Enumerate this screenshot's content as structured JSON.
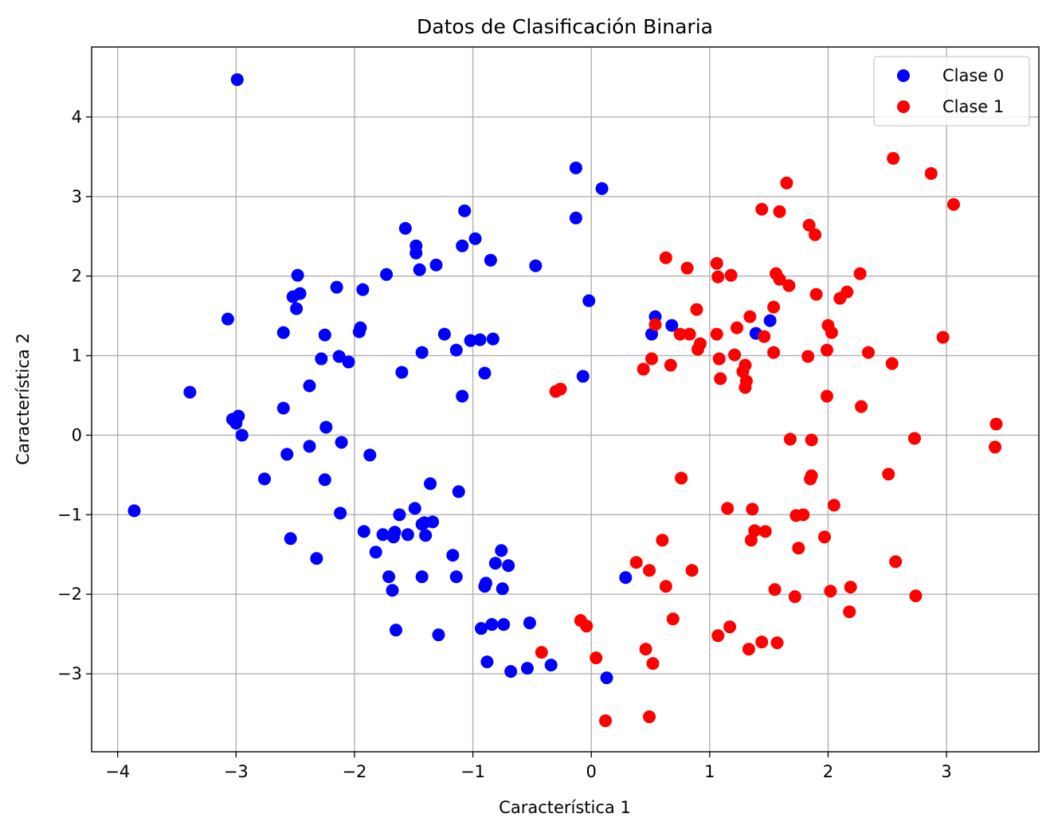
{
  "chart_data": {
    "type": "scatter",
    "title": "Datos de Clasificación Binaria",
    "xlabel": "Característica 1",
    "ylabel": "Característica 2",
    "xlim": [
      -4.22,
      3.78
    ],
    "ylim": [
      -3.98,
      4.88
    ],
    "xticks": [
      -4,
      -3,
      -2,
      -1,
      0,
      1,
      2,
      3
    ],
    "yticks": [
      -3,
      -2,
      -1,
      0,
      1,
      2,
      3,
      4
    ],
    "xtick_labels": [
      "−4",
      "−3",
      "−2",
      "−1",
      "0",
      "1",
      "2",
      "3"
    ],
    "ytick_labels": [
      "−3",
      "−2",
      "−1",
      "0",
      "1",
      "2",
      "3",
      "4"
    ],
    "grid": true,
    "legend_position": "top-right",
    "series": [
      {
        "name": "Clase 0",
        "color": "#0000ff",
        "points": [
          [
            -2.99,
            4.47
          ],
          [
            -3.86,
            -0.95
          ],
          [
            -3.39,
            0.54
          ],
          [
            -3.07,
            1.46
          ],
          [
            -3.03,
            0.2
          ],
          [
            -3.0,
            0.15
          ],
          [
            -2.98,
            0.24
          ],
          [
            -2.95,
            0.0
          ],
          [
            -2.76,
            -0.55
          ],
          [
            -2.6,
            1.29
          ],
          [
            -2.6,
            0.34
          ],
          [
            -2.57,
            -0.24
          ],
          [
            -2.54,
            -1.3
          ],
          [
            -2.52,
            1.74
          ],
          [
            -2.49,
            1.59
          ],
          [
            -2.48,
            2.01
          ],
          [
            -2.46,
            1.78
          ],
          [
            -2.38,
            0.62
          ],
          [
            -2.38,
            -0.14
          ],
          [
            -2.32,
            -1.55
          ],
          [
            -2.28,
            0.96
          ],
          [
            -2.25,
            1.26
          ],
          [
            -2.25,
            -0.56
          ],
          [
            -2.24,
            0.1
          ],
          [
            -2.15,
            1.86
          ],
          [
            -2.13,
            0.99
          ],
          [
            -2.12,
            -0.98
          ],
          [
            -2.11,
            -0.09
          ],
          [
            -2.05,
            0.92
          ],
          [
            -1.96,
            1.3
          ],
          [
            -1.95,
            1.35
          ],
          [
            -1.93,
            1.83
          ],
          [
            -1.92,
            -1.21
          ],
          [
            -1.87,
            -0.25
          ],
          [
            -1.82,
            -1.47
          ],
          [
            -1.76,
            -1.25
          ],
          [
            -1.73,
            2.02
          ],
          [
            -1.71,
            -1.78
          ],
          [
            -1.68,
            -1.95
          ],
          [
            -1.67,
            -1.28
          ],
          [
            -1.66,
            -1.22
          ],
          [
            -1.65,
            -2.45
          ],
          [
            -1.62,
            -1.0
          ],
          [
            -1.6,
            0.79
          ],
          [
            -1.57,
            2.6
          ],
          [
            -1.55,
            -1.25
          ],
          [
            -1.49,
            -0.92
          ],
          [
            -1.48,
            2.29
          ],
          [
            -1.48,
            2.38
          ],
          [
            -1.45,
            2.08
          ],
          [
            -1.43,
            1.04
          ],
          [
            -1.43,
            -1.12
          ],
          [
            -1.43,
            -1.78
          ],
          [
            -1.41,
            -1.1
          ],
          [
            -1.4,
            -1.26
          ],
          [
            -1.36,
            -0.61
          ],
          [
            -1.34,
            -1.09
          ],
          [
            -1.31,
            2.14
          ],
          [
            -1.29,
            -2.51
          ],
          [
            -1.24,
            1.27
          ],
          [
            -1.17,
            -1.51
          ],
          [
            -1.14,
            1.07
          ],
          [
            -1.14,
            -1.78
          ],
          [
            -1.12,
            -0.71
          ],
          [
            -1.09,
            0.49
          ],
          [
            -1.09,
            2.38
          ],
          [
            -1.07,
            2.82
          ],
          [
            -1.02,
            1.19
          ],
          [
            -0.98,
            2.47
          ],
          [
            -0.94,
            1.2
          ],
          [
            -0.93,
            -2.43
          ],
          [
            -0.9,
            0.78
          ],
          [
            -0.9,
            -1.9
          ],
          [
            -0.89,
            -1.86
          ],
          [
            -0.88,
            -2.85
          ],
          [
            -0.85,
            2.2
          ],
          [
            -0.84,
            -2.38
          ],
          [
            -0.83,
            1.21
          ],
          [
            -0.81,
            -1.61
          ],
          [
            -0.76,
            -1.45
          ],
          [
            -0.75,
            -1.93
          ],
          [
            -0.74,
            -2.38
          ],
          [
            -0.7,
            -1.64
          ],
          [
            -0.68,
            -2.97
          ],
          [
            -0.54,
            -2.93
          ],
          [
            -0.52,
            -2.36
          ],
          [
            -0.47,
            2.13
          ],
          [
            -0.34,
            -2.89
          ],
          [
            -0.13,
            3.36
          ],
          [
            -0.13,
            2.73
          ],
          [
            -0.07,
            0.74
          ],
          [
            -0.02,
            1.69
          ],
          [
            0.09,
            3.1
          ],
          [
            0.13,
            -3.05
          ],
          [
            0.29,
            -1.79
          ],
          [
            0.51,
            1.27
          ],
          [
            0.54,
            1.49
          ],
          [
            0.68,
            1.38
          ],
          [
            1.39,
            1.28
          ],
          [
            1.51,
            1.44
          ]
        ]
      },
      {
        "name": "Clase 1",
        "color": "#ff0000",
        "points": [
          [
            -0.42,
            -2.73
          ],
          [
            -0.3,
            0.55
          ],
          [
            -0.26,
            0.58
          ],
          [
            -0.09,
            -2.33
          ],
          [
            -0.04,
            -2.4
          ],
          [
            0.04,
            -2.8
          ],
          [
            0.12,
            -3.59
          ],
          [
            0.38,
            -1.6
          ],
          [
            0.44,
            0.83
          ],
          [
            0.46,
            -2.69
          ],
          [
            0.49,
            -3.54
          ],
          [
            0.49,
            -1.7
          ],
          [
            0.51,
            0.96
          ],
          [
            0.52,
            -2.87
          ],
          [
            0.54,
            1.39
          ],
          [
            0.6,
            -1.32
          ],
          [
            0.63,
            2.23
          ],
          [
            0.63,
            -1.9
          ],
          [
            0.67,
            0.88
          ],
          [
            0.69,
            -2.31
          ],
          [
            0.75,
            1.27
          ],
          [
            0.76,
            -0.54
          ],
          [
            0.81,
            2.1
          ],
          [
            0.83,
            1.27
          ],
          [
            0.85,
            -1.7
          ],
          [
            0.89,
            1.58
          ],
          [
            0.9,
            1.08
          ],
          [
            0.92,
            1.15
          ],
          [
            1.06,
            2.16
          ],
          [
            1.06,
            1.27
          ],
          [
            1.07,
            1.99
          ],
          [
            1.07,
            -2.52
          ],
          [
            1.08,
            0.96
          ],
          [
            1.09,
            0.71
          ],
          [
            1.15,
            -0.92
          ],
          [
            1.17,
            -2.41
          ],
          [
            1.18,
            2.01
          ],
          [
            1.21,
            1.01
          ],
          [
            1.23,
            1.35
          ],
          [
            1.28,
            0.8
          ],
          [
            1.3,
            0.88
          ],
          [
            1.3,
            0.6
          ],
          [
            1.31,
            0.68
          ],
          [
            1.33,
            -2.69
          ],
          [
            1.34,
            1.49
          ],
          [
            1.35,
            -1.32
          ],
          [
            1.36,
            -0.93
          ],
          [
            1.38,
            -1.2
          ],
          [
            1.44,
            2.84
          ],
          [
            1.44,
            -2.6
          ],
          [
            1.46,
            1.24
          ],
          [
            1.47,
            -1.21
          ],
          [
            1.54,
            1.61
          ],
          [
            1.54,
            1.04
          ],
          [
            1.55,
            -1.94
          ],
          [
            1.56,
            2.03
          ],
          [
            1.57,
            -2.61
          ],
          [
            1.59,
            2.81
          ],
          [
            1.59,
            1.96
          ],
          [
            1.65,
            3.17
          ],
          [
            1.67,
            1.88
          ],
          [
            1.68,
            -0.05
          ],
          [
            1.72,
            -2.03
          ],
          [
            1.73,
            -1.01
          ],
          [
            1.75,
            -1.42
          ],
          [
            1.79,
            -1.0
          ],
          [
            1.83,
            0.99
          ],
          [
            1.84,
            2.64
          ],
          [
            1.85,
            -0.55
          ],
          [
            1.86,
            -0.51
          ],
          [
            1.86,
            -0.06
          ],
          [
            1.89,
            2.52
          ],
          [
            1.9,
            1.77
          ],
          [
            1.97,
            -1.28
          ],
          [
            1.99,
            1.07
          ],
          [
            1.99,
            0.49
          ],
          [
            2.0,
            1.38
          ],
          [
            2.02,
            -1.96
          ],
          [
            2.03,
            1.29
          ],
          [
            2.05,
            -0.88
          ],
          [
            2.1,
            1.72
          ],
          [
            2.16,
            1.8
          ],
          [
            2.18,
            -2.22
          ],
          [
            2.19,
            -1.91
          ],
          [
            2.27,
            2.03
          ],
          [
            2.28,
            0.36
          ],
          [
            2.34,
            1.04
          ],
          [
            2.51,
            -0.49
          ],
          [
            2.54,
            0.9
          ],
          [
            2.55,
            3.48
          ],
          [
            2.57,
            -1.59
          ],
          [
            2.73,
            -0.04
          ],
          [
            2.74,
            -2.02
          ],
          [
            2.87,
            3.29
          ],
          [
            2.97,
            1.23
          ],
          [
            3.06,
            2.9
          ],
          [
            3.41,
            -0.15
          ],
          [
            3.42,
            0.14
          ]
        ]
      }
    ]
  }
}
